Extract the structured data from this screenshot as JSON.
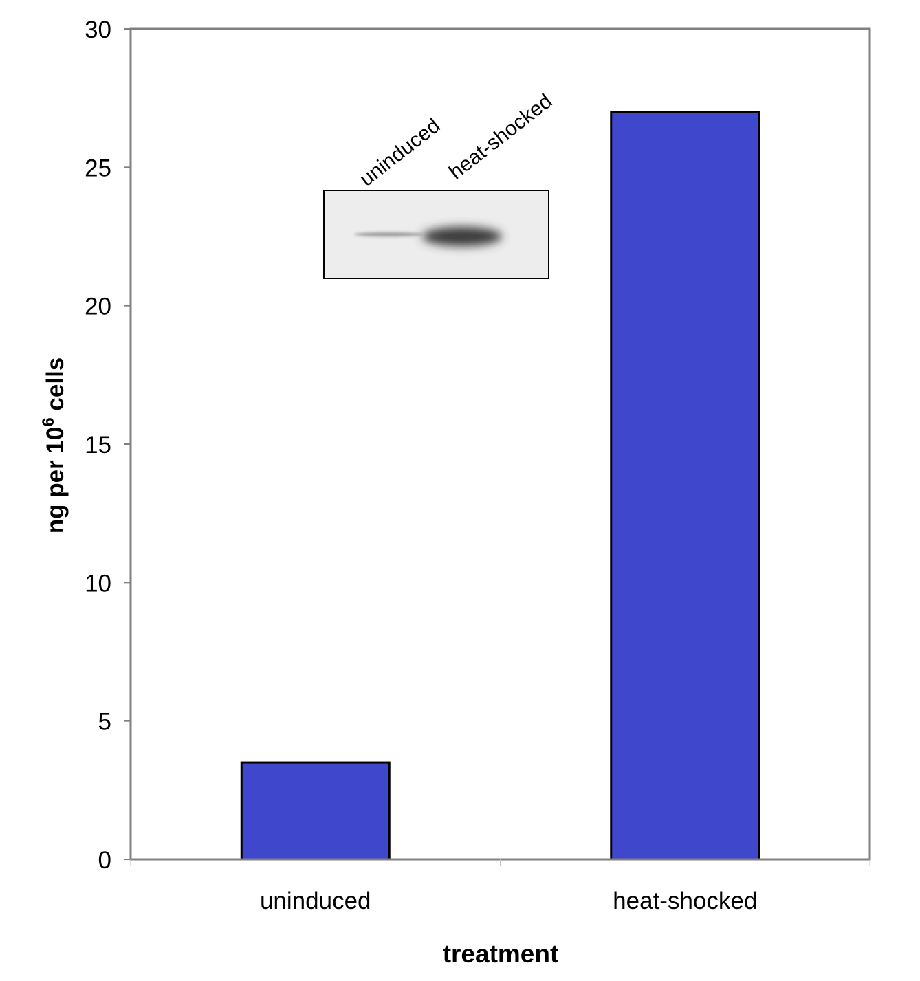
{
  "chart_data": {
    "type": "bar",
    "title": "",
    "categories": [
      "uninduced",
      "heat-shocked"
    ],
    "values": [
      3.5,
      27
    ],
    "xlabel": "treatment",
    "ylabel": {
      "prefix": "ng per 10",
      "superscript": "6",
      "suffix": " cells"
    },
    "ylim": [
      0,
      30
    ],
    "yticks": [
      0,
      5,
      10,
      15,
      20,
      25,
      30
    ],
    "grid": false,
    "legend": "none",
    "bar_color": "#3f48cc",
    "inset": {
      "description_labels": [
        "uninduced",
        "heat-shocked"
      ],
      "type": "western-blot-image"
    }
  }
}
